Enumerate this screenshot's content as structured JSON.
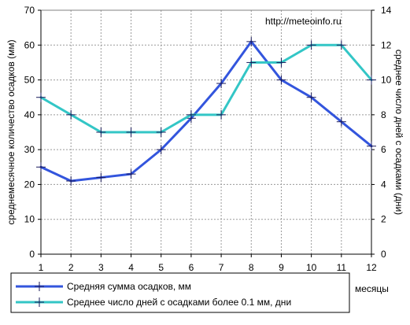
{
  "chart_data": {
    "type": "line",
    "x": [
      1,
      2,
      3,
      4,
      5,
      6,
      7,
      8,
      9,
      10,
      11,
      12
    ],
    "xlabel": "месяцы",
    "ylabel_left": "среднемесячное количество осадков (мм)",
    "ylabel_right": "среднее число дней с осадками (дни)",
    "ylim_left": [
      0,
      70
    ],
    "ylim_right": [
      0,
      14
    ],
    "yticks_left": [
      0,
      10,
      20,
      30,
      40,
      50,
      60,
      70
    ],
    "yticks_right": [
      0,
      2,
      4,
      6,
      8,
      10,
      12,
      14
    ],
    "grid": true,
    "watermark": "http://meteoinfo.ru",
    "series": [
      {
        "name": "Средняя сумма осадков, мм",
        "axis": "left",
        "color": "#3355dd",
        "values": [
          25,
          21,
          22,
          23,
          30,
          39,
          49,
          61,
          50,
          45,
          38,
          31
        ]
      },
      {
        "name": "Среднее число дней с  осадками более 0.1 мм, дни",
        "axis": "right",
        "color": "#33c6c6",
        "values": [
          9,
          8,
          7,
          7,
          7,
          8,
          8,
          11,
          11,
          12,
          12,
          10
        ]
      }
    ],
    "legend_position": "bottom"
  }
}
